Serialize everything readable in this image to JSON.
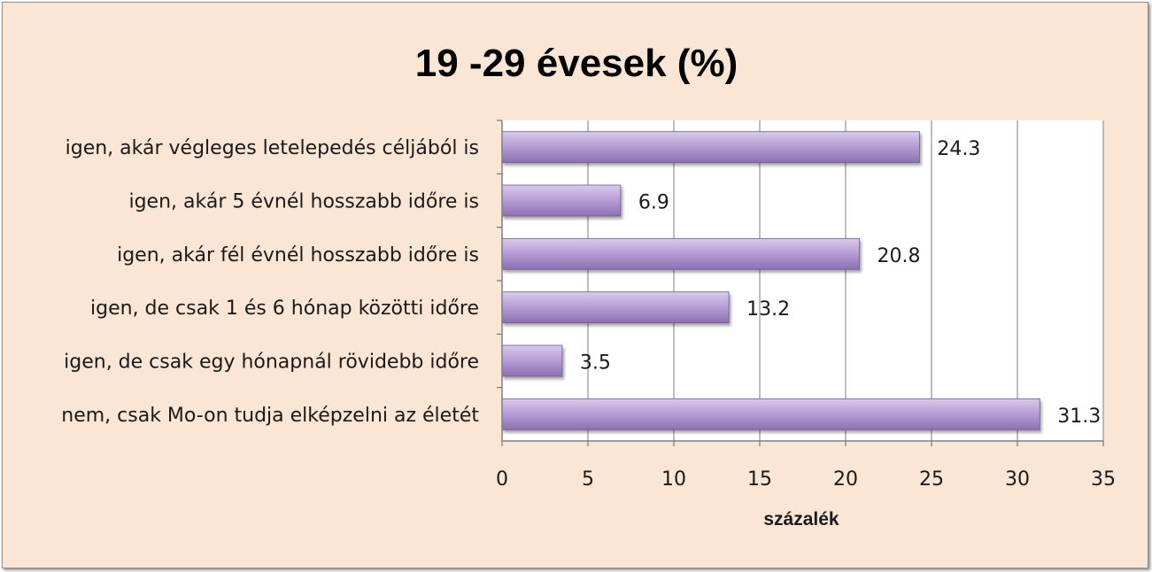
{
  "colors": {
    "frame_background": "#fbe5d5",
    "plot_background": "#ffffff",
    "bar_fill": "#b9a0d6",
    "gridline": "#9a9a9a"
  },
  "chart_data": {
    "type": "bar",
    "orientation": "horizontal",
    "title": "19 -29 évesek (%)",
    "xlabel": "százalék",
    "ylabel": "",
    "categories": [
      "igen, akár végleges letelepedés céljából is",
      "igen, akár 5 évnél hosszabb időre is",
      "igen, akár fél évnél hosszabb időre is",
      "igen, de csak 1 és 6 hónap közötti időre",
      "igen, de csak egy hónapnál rövidebb időre",
      "nem, csak Mo-on tudja elképzelni az életét"
    ],
    "values": [
      24.3,
      6.9,
      20.8,
      13.2,
      3.5,
      31.3
    ],
    "data_labels": [
      "24.3",
      "6.9",
      "20.8",
      "13.2",
      "3.5",
      "31.3"
    ],
    "xlim": [
      0,
      35
    ],
    "xticks": [
      "0",
      "5",
      "10",
      "15",
      "20",
      "25",
      "30",
      "35"
    ],
    "grid": "vertical",
    "legend": "none"
  }
}
